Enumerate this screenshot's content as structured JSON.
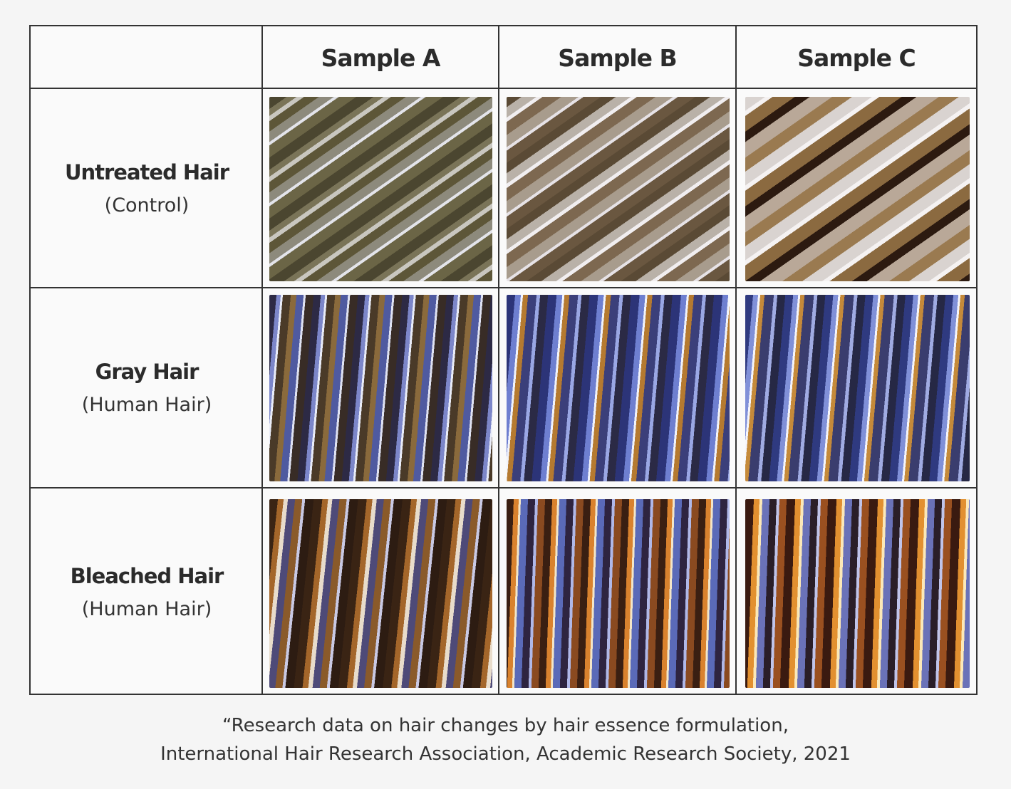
{
  "table": {
    "columns": [
      "Sample A",
      "Sample B",
      "Sample C"
    ],
    "rows": [
      {
        "title": "Untreated Hair",
        "subtitle": "(Control)"
      },
      {
        "title": "Gray Hair",
        "subtitle": "(Human Hair)"
      },
      {
        "title": "Bleached Hair",
        "subtitle": "(Human Hair)"
      }
    ]
  },
  "caption": [
    "“Research data on hair changes by hair essence formulation,",
    "International Hair Research Association, Academic Research Society, 2021"
  ]
}
